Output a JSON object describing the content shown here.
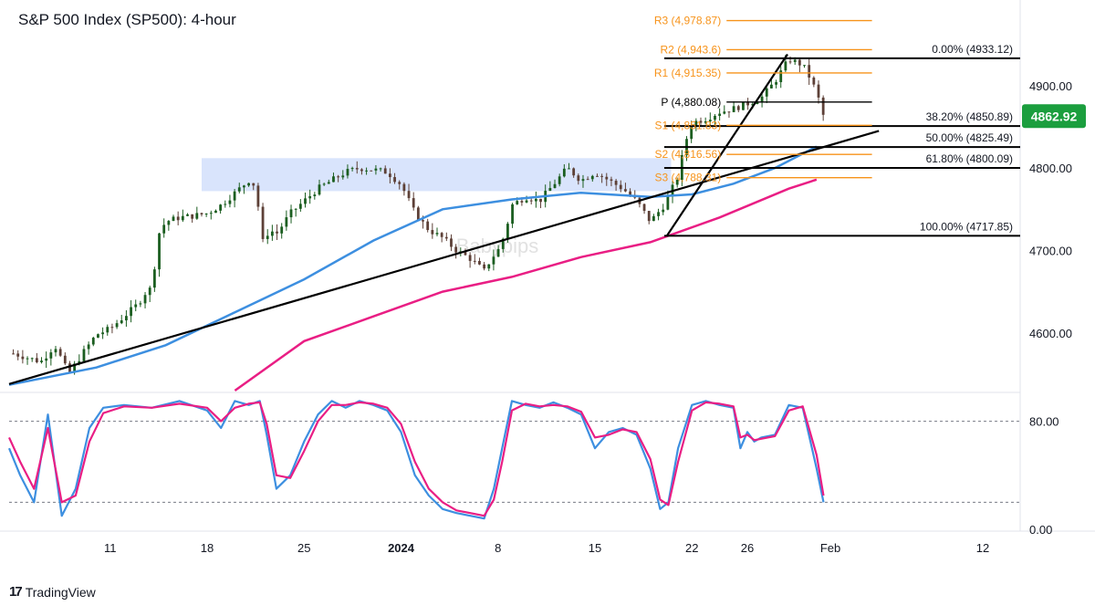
{
  "header": {
    "title": "S&P 500 Index (SP500): 4-hour"
  },
  "footer": {
    "brand": "TradingView"
  },
  "watermark": "Babypips",
  "colors": {
    "bull": "#26a69a",
    "candle_up": "#1b5e20",
    "candle_down": "#5d4037",
    "sma100": "#3d8fe0",
    "sma200": "#e91e84",
    "trend": "#000000",
    "pivot": "#f7931a",
    "fib": "#000000",
    "zone": "#c9d8fb",
    "price_badge": "#1b9e3e",
    "stoch_k": "#3d8fe0",
    "stoch_d": "#e91e84"
  },
  "chart_data": [
    {
      "type": "candlestick",
      "panel": "price",
      "symbol": "SP500",
      "timeframe": "4-hour",
      "ylim": [
        4530,
        4995
      ],
      "y_ticks": [
        4600,
        4700,
        4800,
        4900
      ],
      "y_tick_labels": [
        "4600.00",
        "4700.00",
        "4800.00",
        "4900.00"
      ],
      "x_ticks": [
        {
          "label": "11",
          "d": 11
        },
        {
          "label": "18",
          "d": 18
        },
        {
          "label": "25",
          "d": 25
        },
        {
          "label": "2024",
          "d": 32
        },
        {
          "label": "8",
          "d": 39
        },
        {
          "label": "15",
          "d": 46
        },
        {
          "label": "22",
          "d": 53
        },
        {
          "label": "26",
          "d": 57
        },
        {
          "label": "Feb",
          "d": 63
        },
        {
          "label": "12",
          "d": 74
        }
      ],
      "x_range_days": [
        3.7,
        76.7
      ],
      "current_price": "4862.92",
      "close_path": [
        [
          4.0,
          4575
        ],
        [
          6.0,
          4565
        ],
        [
          7.0,
          4585
        ],
        [
          8.0,
          4550
        ],
        [
          9.0,
          4575
        ],
        [
          10.0,
          4598
        ],
        [
          11.0,
          4605
        ],
        [
          12.0,
          4620
        ],
        [
          13.0,
          4635
        ],
        [
          13.5,
          4648
        ],
        [
          14.0,
          4655
        ],
        [
          14.5,
          4720
        ],
        [
          15.0,
          4735
        ],
        [
          16.0,
          4740
        ],
        [
          17.0,
          4742
        ],
        [
          18.0,
          4745
        ],
        [
          19.0,
          4755
        ],
        [
          20.0,
          4770
        ],
        [
          21.0,
          4785
        ],
        [
          21.5,
          4778
        ],
        [
          22.0,
          4710
        ],
        [
          22.5,
          4725
        ],
        [
          23.0,
          4720
        ],
        [
          24.0,
          4745
        ],
        [
          25.0,
          4760
        ],
        [
          26.0,
          4775
        ],
        [
          27.0,
          4785
        ],
        [
          28.0,
          4795
        ],
        [
          29.0,
          4800
        ],
        [
          30.0,
          4798
        ],
        [
          31.0,
          4795
        ],
        [
          32.0,
          4780
        ],
        [
          33.0,
          4745
        ],
        [
          34.0,
          4725
        ],
        [
          35.0,
          4715
        ],
        [
          36.0,
          4700
        ],
        [
          37.0,
          4690
        ],
        [
          38.0,
          4675
        ],
        [
          38.5,
          4690
        ],
        [
          39.0,
          4700
        ],
        [
          39.5,
          4720
        ],
        [
          40.0,
          4755
        ],
        [
          41.0,
          4765
        ],
        [
          42.0,
          4760
        ],
        [
          43.0,
          4780
        ],
        [
          44.0,
          4800
        ],
        [
          45.0,
          4785
        ],
        [
          46.0,
          4795
        ],
        [
          47.0,
          4785
        ],
        [
          48.0,
          4775
        ],
        [
          49.0,
          4760
        ],
        [
          50.0,
          4735
        ],
        [
          51.0,
          4755
        ],
        [
          52.0,
          4790
        ],
        [
          52.5,
          4830
        ],
        [
          53.0,
          4855
        ],
        [
          54.0,
          4860
        ],
        [
          55.0,
          4868
        ],
        [
          56.0,
          4872
        ],
        [
          57.0,
          4878
        ],
        [
          58.0,
          4885
        ],
        [
          59.0,
          4905
        ],
        [
          60.0,
          4932
        ],
        [
          61.0,
          4925
        ],
        [
          61.5,
          4910
        ],
        [
          62.0,
          4892
        ],
        [
          62.5,
          4862.92
        ]
      ],
      "series": [
        {
          "name": "SMA 100",
          "color": "#3d8fe0",
          "x": [
            3.7,
            10,
            15,
            20,
            25,
            30,
            35,
            40,
            45,
            50,
            53,
            56,
            59,
            62
          ],
          "y": [
            4537,
            4558,
            4585,
            4625,
            4665,
            4712,
            4750,
            4762,
            4770,
            4765,
            4768,
            4781,
            4800,
            4826
          ]
        },
        {
          "name": "SMA 200",
          "color": "#e91e84",
          "x": [
            20,
            25,
            30,
            35,
            40,
            45,
            50,
            55,
            60,
            62
          ],
          "y": [
            4530,
            4590,
            4620,
            4650,
            4668,
            4692,
            4710,
            4740,
            4775,
            4786
          ]
        }
      ],
      "trendlines": [
        {
          "from": [
            3.7,
            4538
          ],
          "to": [
            66.5,
            4845
          ]
        },
        {
          "from": [
            51.2,
            4718
          ],
          "to": [
            59.9,
            4938
          ]
        }
      ],
      "zone": {
        "x_from": 17.6,
        "x_to": 51.5,
        "y_from": 4772,
        "y_to": 4812
      },
      "pivot_levels": [
        {
          "label": "R3 (4,978.87)",
          "value": 4978.87,
          "color": "#f7931a"
        },
        {
          "label": "R2 (4,943.6)",
          "value": 4943.6,
          "color": "#f7931a"
        },
        {
          "label": "R1 (4,915.35)",
          "value": 4915.35,
          "color": "#f7931a"
        },
        {
          "label": "P (4,880.08)",
          "value": 4880.08,
          "color": "#000000"
        },
        {
          "label": "S1 (4,851.83)",
          "value": 4851.83,
          "color": "#f7931a"
        },
        {
          "label": "S2 (4,816.56)",
          "value": 4816.56,
          "color": "#f7931a"
        },
        {
          "label": "S3 (4,788.31)",
          "value": 4788.31,
          "color": "#f7931a"
        }
      ],
      "pivot_x_range": [
        55.5,
        66.0
      ],
      "fib_levels": [
        {
          "label": "0.00% (4933.12)",
          "value": 4933.12
        },
        {
          "label": "38.20% (4850.89)",
          "value": 4850.89
        },
        {
          "label": "50.00% (4825.49)",
          "value": 4825.49
        },
        {
          "label": "61.80% (4800.09)",
          "value": 4800.09
        },
        {
          "label": "100.00% (4717.85)",
          "value": 4717.85
        }
      ],
      "fib_x_from": 51.0
    },
    {
      "type": "line",
      "panel": "stochastic",
      "ylim": [
        0,
        100
      ],
      "y_ticks": [
        0,
        80
      ],
      "y_tick_labels": [
        "0.00",
        "80.00"
      ],
      "bands": [
        80,
        20
      ],
      "series": [
        {
          "name": "%K",
          "color": "#3d8fe0",
          "x": [
            3.7,
            4.5,
            5.5,
            6.5,
            7.5,
            8.5,
            9.5,
            10.5,
            12,
            14,
            16,
            18,
            19,
            20,
            21,
            21.8,
            22.3,
            23,
            24,
            25,
            26,
            27,
            28,
            29,
            30,
            31,
            32,
            33,
            34,
            35,
            36,
            37,
            38,
            38.7,
            39.3,
            40,
            41,
            42,
            43,
            44,
            45,
            46,
            47,
            48,
            49,
            50,
            50.7,
            51.3,
            52,
            53,
            54,
            55,
            56,
            56.5,
            57,
            57.5,
            58,
            59,
            60,
            61,
            62,
            62.5
          ],
          "y": [
            60,
            40,
            20,
            85,
            10,
            30,
            75,
            90,
            92,
            90,
            95,
            88,
            75,
            95,
            92,
            95,
            70,
            30,
            40,
            65,
            85,
            95,
            90,
            95,
            92,
            88,
            72,
            40,
            25,
            15,
            12,
            10,
            8,
            30,
            60,
            95,
            92,
            90,
            94,
            90,
            85,
            60,
            72,
            75,
            70,
            45,
            15,
            20,
            60,
            92,
            95,
            92,
            90,
            60,
            72,
            65,
            68,
            70,
            92,
            90,
            45,
            20
          ]
        },
        {
          "name": "%D",
          "color": "#e91e84",
          "x": [
            3.7,
            4.5,
            5.5,
            6.5,
            7.5,
            8.5,
            9.5,
            10.5,
            12,
            14,
            16,
            18,
            19,
            20,
            21,
            21.8,
            22.3,
            23,
            24,
            25,
            26,
            27,
            28,
            29,
            30,
            31,
            32,
            33,
            34,
            35,
            36,
            37,
            38,
            38.7,
            39.3,
            40,
            41,
            42,
            43,
            44,
            45,
            46,
            47,
            48,
            49,
            50,
            50.7,
            51.3,
            52,
            53,
            54,
            55,
            56,
            56.5,
            57,
            57.5,
            58,
            59,
            60,
            61,
            62,
            62.5
          ],
          "y": [
            68,
            50,
            30,
            75,
            20,
            25,
            65,
            86,
            91,
            90,
            93,
            90,
            80,
            90,
            93,
            94,
            78,
            40,
            38,
            58,
            80,
            92,
            92,
            94,
            93,
            90,
            78,
            50,
            30,
            20,
            14,
            12,
            10,
            22,
            50,
            88,
            93,
            91,
            92,
            91,
            87,
            68,
            70,
            74,
            72,
            52,
            22,
            18,
            50,
            88,
            94,
            93,
            91,
            68,
            70,
            66,
            67,
            69,
            88,
            91,
            55,
            25
          ]
        }
      ]
    }
  ]
}
